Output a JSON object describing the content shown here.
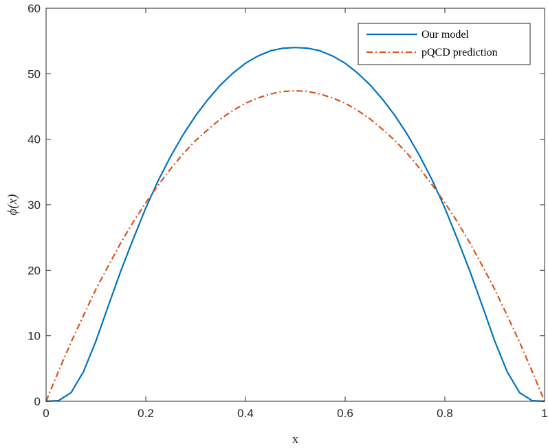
{
  "chart_data": {
    "type": "line",
    "title": "",
    "xlabel": "x",
    "ylabel": "ϕ(x)",
    "xlim": [
      0,
      1
    ],
    "ylim": [
      0,
      60
    ],
    "xticks": [
      0,
      0.2,
      0.4,
      0.6,
      0.8,
      1
    ],
    "xtick_labels": [
      "0",
      "0.2",
      "0.4",
      "0.6",
      "0.8",
      "1"
    ],
    "yticks": [
      0,
      10,
      20,
      30,
      40,
      50,
      60
    ],
    "ytick_labels": [
      "0",
      "10",
      "20",
      "30",
      "40",
      "50",
      "60"
    ],
    "grid": false,
    "legend_position": "top-right",
    "series": [
      {
        "name": "Our model",
        "color": "#0072BD",
        "style": "solid",
        "x": [
          0,
          0.025,
          0.05,
          0.075,
          0.1,
          0.125,
          0.15,
          0.175,
          0.2,
          0.225,
          0.25,
          0.275,
          0.3,
          0.325,
          0.35,
          0.375,
          0.4,
          0.425,
          0.45,
          0.475,
          0.5,
          0.525,
          0.55,
          0.575,
          0.6,
          0.625,
          0.65,
          0.675,
          0.7,
          0.725,
          0.75,
          0.775,
          0.8,
          0.825,
          0.85,
          0.875,
          0.9,
          0.925,
          0.95,
          0.975,
          1
        ],
        "y": [
          0,
          0.1,
          1.3,
          4.5,
          9.2,
          14.6,
          19.9,
          24.8,
          29.5,
          33.7,
          37.4,
          40.7,
          43.6,
          46.1,
          48.3,
          50.1,
          51.6,
          52.7,
          53.5,
          53.9,
          54.0,
          53.9,
          53.5,
          52.7,
          51.6,
          50.1,
          48.3,
          46.1,
          43.6,
          40.7,
          37.4,
          33.7,
          29.5,
          24.8,
          19.9,
          14.6,
          9.2,
          4.5,
          1.3,
          0.1,
          0
        ]
      },
      {
        "name": "pQCD prediction",
        "color": "#D95319",
        "style": "dashdot",
        "x": [
          0,
          0.025,
          0.05,
          0.075,
          0.1,
          0.125,
          0.15,
          0.175,
          0.2,
          0.225,
          0.25,
          0.275,
          0.3,
          0.325,
          0.35,
          0.375,
          0.4,
          0.425,
          0.45,
          0.475,
          0.5,
          0.525,
          0.55,
          0.575,
          0.6,
          0.625,
          0.65,
          0.675,
          0.7,
          0.725,
          0.75,
          0.775,
          0.8,
          0.825,
          0.85,
          0.875,
          0.9,
          0.925,
          0.95,
          0.975,
          1
        ],
        "y": [
          0,
          4.6,
          9.0,
          13.1,
          17.1,
          20.7,
          24.2,
          27.4,
          30.3,
          33.0,
          35.5,
          37.8,
          39.8,
          41.5,
          43.1,
          44.4,
          45.5,
          46.3,
          46.9,
          47.3,
          47.4,
          47.3,
          46.9,
          46.3,
          45.5,
          44.4,
          43.1,
          41.5,
          39.8,
          37.8,
          35.5,
          33.0,
          30.3,
          27.4,
          24.2,
          20.7,
          17.1,
          13.1,
          9.0,
          4.6,
          0
        ]
      }
    ]
  }
}
